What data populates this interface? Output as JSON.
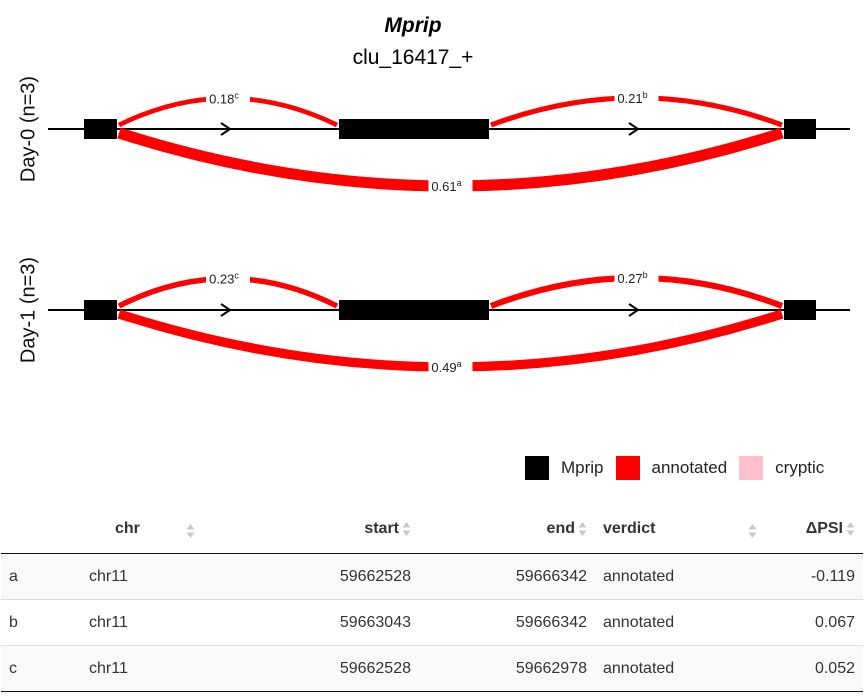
{
  "plot": {
    "gene": "Mprip",
    "cluster": "clu_16417_+",
    "tracks": [
      {
        "label": "Day-0 (n=3)",
        "junctions": [
          {
            "id": "c",
            "value": "0.18",
            "sup": "c",
            "from": "exon1",
            "to": "exon2",
            "side": "top"
          },
          {
            "id": "b",
            "value": "0.21",
            "sup": "b",
            "from": "exon2",
            "to": "exon3",
            "side": "top"
          },
          {
            "id": "a",
            "value": "0.61",
            "sup": "a",
            "from": "exon1",
            "to": "exon3",
            "side": "bottom"
          }
        ]
      },
      {
        "label": "Day-1 (n=3)",
        "junctions": [
          {
            "id": "c",
            "value": "0.23",
            "sup": "c",
            "from": "exon1",
            "to": "exon2",
            "side": "top"
          },
          {
            "id": "b",
            "value": "0.27",
            "sup": "b",
            "from": "exon2",
            "to": "exon3",
            "side": "top"
          },
          {
            "id": "a",
            "value": "0.49",
            "sup": "a",
            "from": "exon1",
            "to": "exon3",
            "side": "bottom"
          }
        ]
      }
    ],
    "colors": {
      "gene": "#000000",
      "annotated": "#ff0000",
      "cryptic": "#ffc0cb"
    }
  },
  "legend": {
    "items": [
      {
        "label": "Mprip",
        "color": "#000000"
      },
      {
        "label": "annotated",
        "color": "#ff0000"
      },
      {
        "label": "cryptic",
        "color": "#ffc0cb"
      }
    ]
  },
  "table": {
    "headers": {
      "id": "",
      "chr": "chr",
      "start": "start",
      "end": "end",
      "verdict": "verdict",
      "dpsi": "ΔPSI"
    },
    "rows": [
      {
        "id": "a",
        "chr": "chr11",
        "start": "59662528",
        "end": "59666342",
        "verdict": "annotated",
        "dpsi": "-0.119"
      },
      {
        "id": "b",
        "chr": "chr11",
        "start": "59663043",
        "end": "59666342",
        "verdict": "annotated",
        "dpsi": "0.067"
      },
      {
        "id": "c",
        "chr": "chr11",
        "start": "59662528",
        "end": "59662978",
        "verdict": "annotated",
        "dpsi": "0.052"
      }
    ]
  }
}
